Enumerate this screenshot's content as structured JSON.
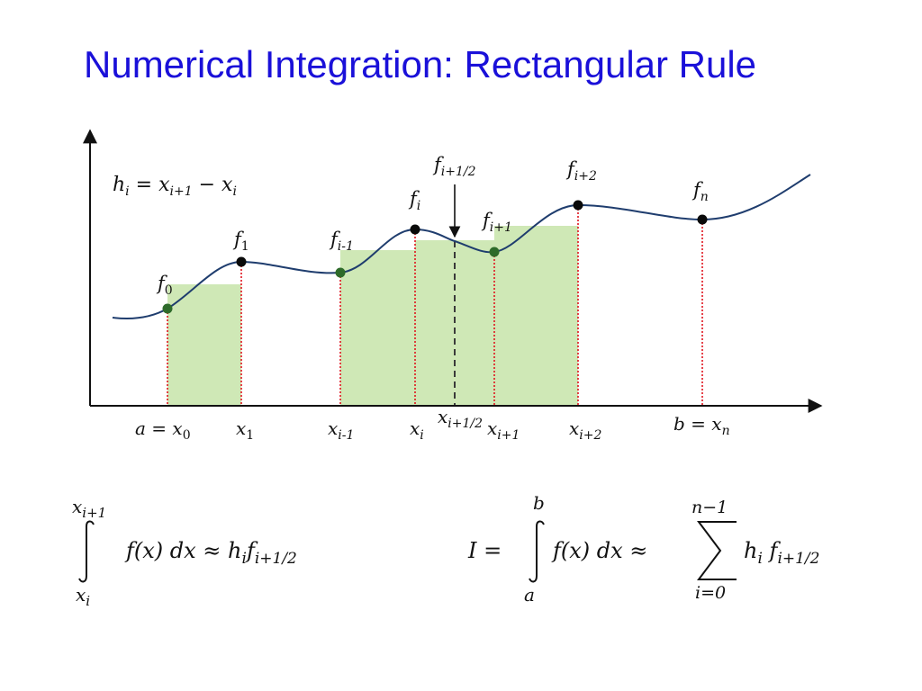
{
  "title": "Numerical Integration: Rectangular Rule",
  "diagram": {
    "step_formula": {
      "lhs": "h",
      "lhs_sub": "i",
      "eq": " = ",
      "x1": "x",
      "x1_sub": "i+1",
      "minus": " − ",
      "x2": "x",
      "x2_sub": "i"
    },
    "point_labels": {
      "f0": {
        "main": "f",
        "sub": "0"
      },
      "f1": {
        "main": "f",
        "sub": "1"
      },
      "fim1": {
        "main": "f",
        "sub": "i-1"
      },
      "fi": {
        "main": "f",
        "sub": "i"
      },
      "fhalf": {
        "main": "f",
        "sub": "i+1/2"
      },
      "fip1": {
        "main": "f",
        "sub": "i+1"
      },
      "fip2": {
        "main": "f",
        "sub": "i+2"
      },
      "fn": {
        "main": "f",
        "sub": "n"
      }
    },
    "axis_labels": {
      "a": {
        "pre": "a = ",
        "main": "x",
        "sub": "0"
      },
      "x1": {
        "main": "x",
        "sub": "1"
      },
      "xim1": {
        "main": "x",
        "sub": "i-1"
      },
      "xi": {
        "main": "x",
        "sub": "i"
      },
      "xhalf": {
        "main": "x",
        "sub": "i+1/2"
      },
      "xip1": {
        "main": "x",
        "sub": "i+1"
      },
      "xip2": {
        "main": "x",
        "sub": "i+2"
      },
      "b": {
        "pre": "b = ",
        "main": "x",
        "sub": "n"
      }
    }
  },
  "formula_left": {
    "upper": "x",
    "upper_sub": "i+1",
    "lower": "x",
    "lower_sub": "i",
    "integrand": "f(x) dx ≈ h",
    "h_sub": "i",
    "f": "f",
    "f_sub": "i+1/2"
  },
  "formula_right": {
    "lhs": "I =",
    "upper": "b",
    "lower": "a",
    "integrand": "f(x) dx ≈",
    "sum_upper": "n−1",
    "sum_lower": "i=0",
    "term_h": "h",
    "term_h_sub": "i",
    "term_f": "f",
    "term_f_sub": "i+1/2"
  },
  "colors": {
    "title": "#1a10d9",
    "curve": "#1f3d6e",
    "rect_fill": "#cfe8b6",
    "drop_line": "#e0141e",
    "point_dark": "#0a0a0a",
    "point_green": "#2e6b2a",
    "axis": "#111111"
  }
}
